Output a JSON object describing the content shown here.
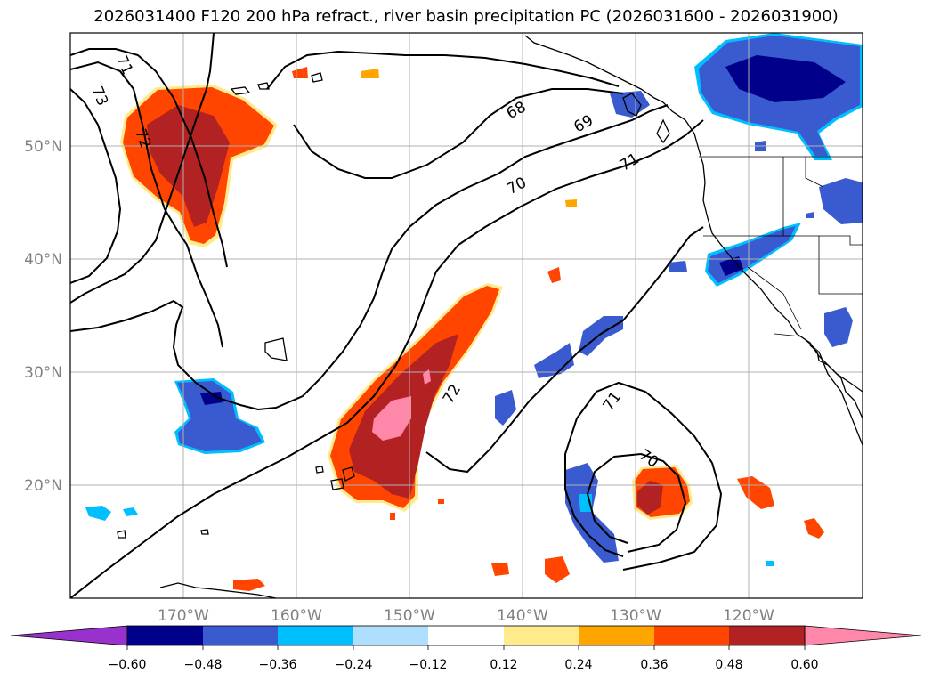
{
  "title": "2026031400 F120 200 hPa refract., river basin precipitation PC (2026031600 - 2026031900)",
  "lat_labels": [
    "50°N",
    "40°N",
    "30°N",
    "20°N"
  ],
  "lon_labels": [
    "170°W",
    "160°W",
    "150°W",
    "140°W",
    "130°W",
    "120°W"
  ],
  "contour_labels": [
    "71",
    "73",
    "72",
    "68",
    "69",
    "70",
    "71",
    "72",
    "71",
    "70"
  ],
  "colorbar": {
    "colors": [
      "#9932cc",
      "#00008b",
      "#3a5bd0",
      "#00bfff",
      "#afdfff",
      "#ffffff",
      "#ffeb8c",
      "#ffa500",
      "#ff4500",
      "#b22222",
      "#ff88aa"
    ],
    "tick_labels": [
      "−0.60",
      "−0.48",
      "−0.36",
      "−0.24",
      "−0.12",
      "0.12",
      "0.24",
      "0.36",
      "0.48",
      "0.60"
    ]
  },
  "colors": {
    "grid": "#b0b0b0",
    "contour": "#000000",
    "coast": "#000000"
  }
}
